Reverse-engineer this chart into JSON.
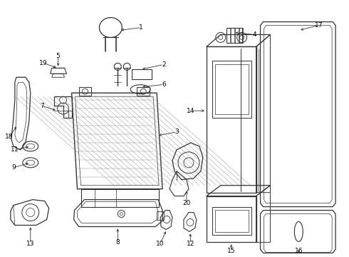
{
  "background_color": "#ffffff",
  "line_color": "#333333",
  "label_color": "#000000",
  "label_fs": 6.5,
  "lw": 0.7
}
